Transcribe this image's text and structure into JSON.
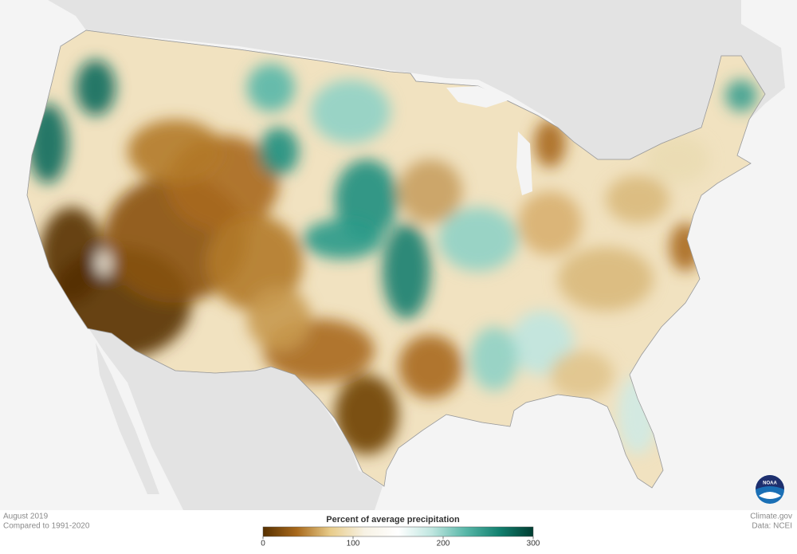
{
  "map": {
    "period": "August 2019",
    "baseline": "Compared to 1991-2020"
  },
  "legend": {
    "title": "Percent of average precipitation",
    "range": [
      0,
      300
    ],
    "ticks": [
      0,
      100,
      200,
      300
    ],
    "colors": [
      "#573000",
      "#a8691c",
      "#e8cc8a",
      "#f7f2e4",
      "#ffffff",
      "#bfe6e0",
      "#58b7a8",
      "#12806f",
      "#003d31"
    ]
  },
  "credits": {
    "site": "Climate.gov",
    "source": "Data: NCEI",
    "logo": "NOAA"
  }
}
